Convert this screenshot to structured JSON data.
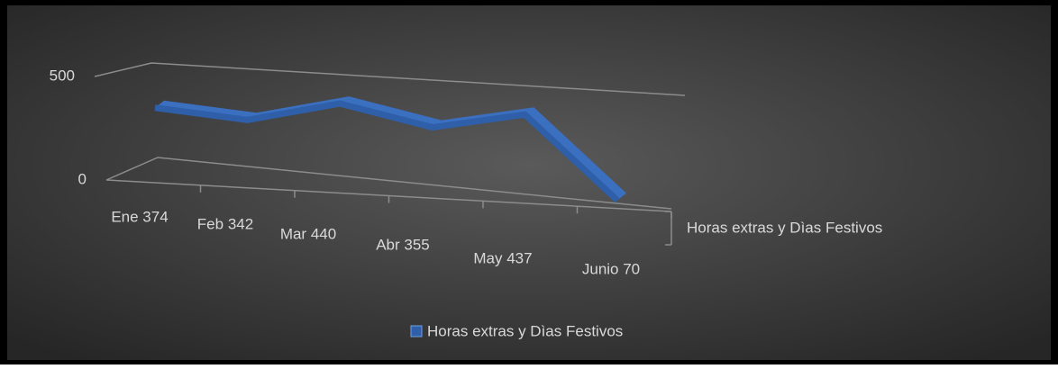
{
  "chart_data": {
    "type": "line3d",
    "categories": [
      "Ene 374",
      "Feb 342",
      "Mar 440",
      "Abr 355",
      "May 437",
      "Junio 70"
    ],
    "series": [
      {
        "name": "Horas extras y Dìas Festivos",
        "color": "#2e5fa8",
        "values": [
          374,
          342,
          440,
          355,
          437,
          70
        ]
      }
    ],
    "ylim": [
      0,
      500
    ],
    "yticks": [
      0,
      500
    ],
    "grid": true,
    "legend": "bottom"
  }
}
